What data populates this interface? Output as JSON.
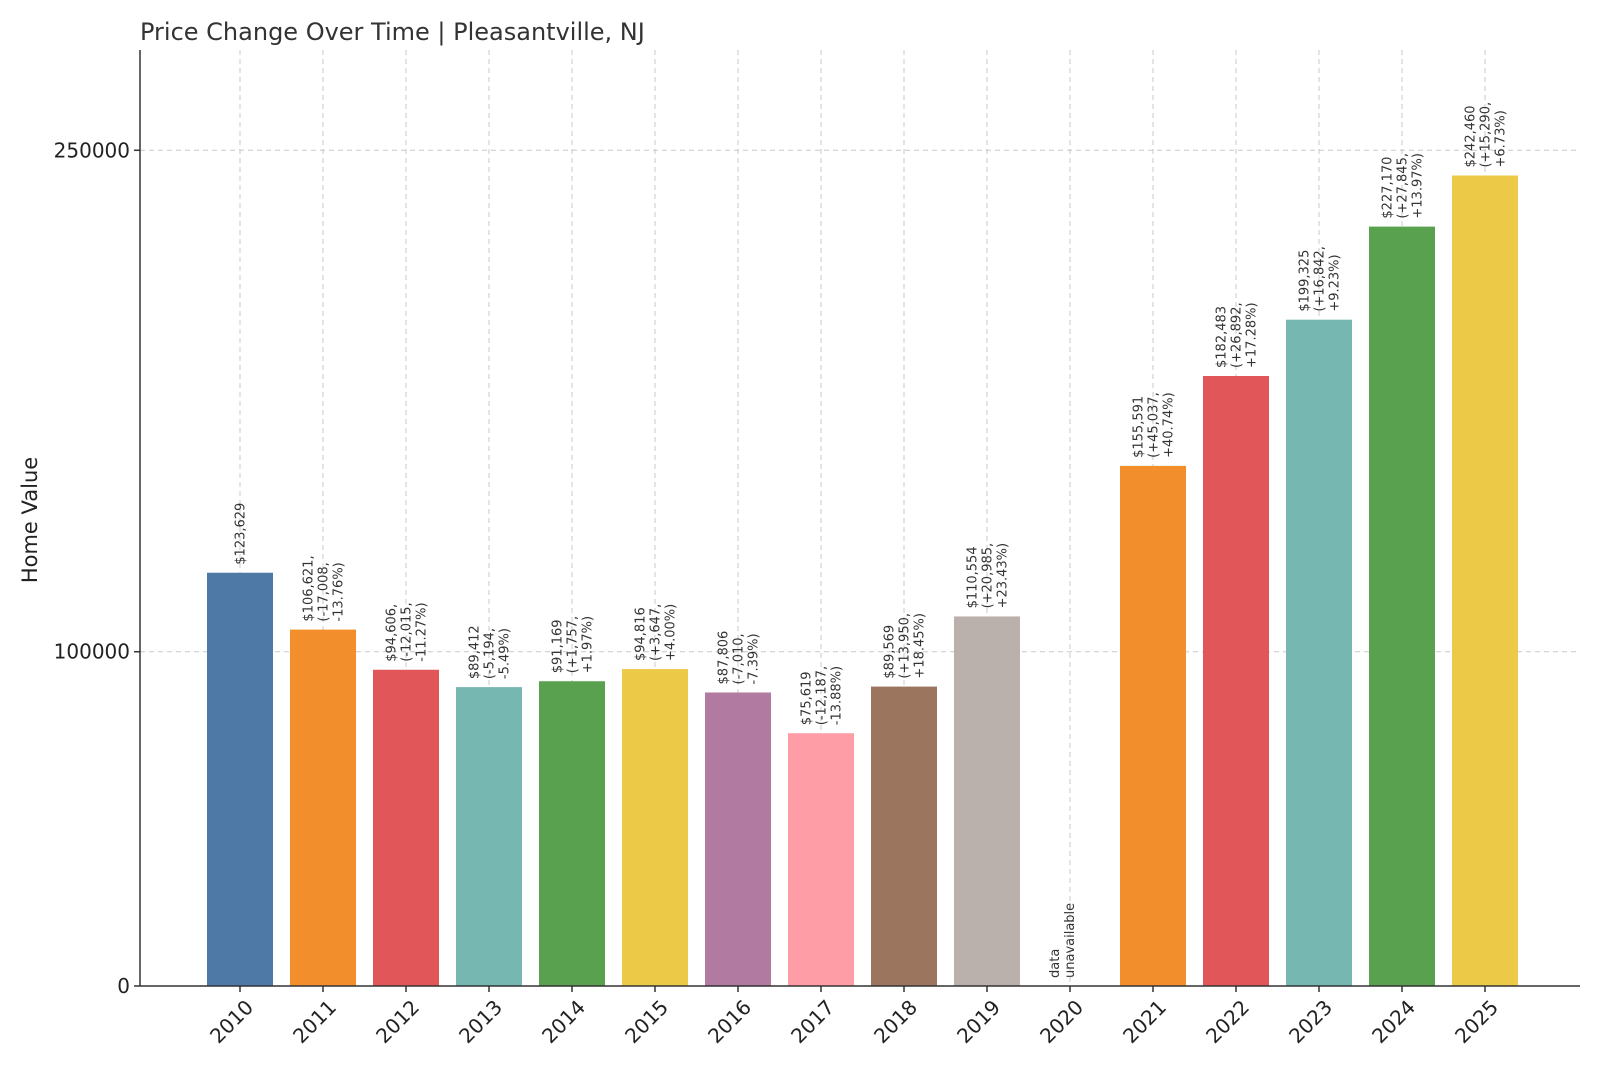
{
  "chart_data": {
    "type": "bar",
    "title": "Price Change Over Time | Pleasantville, NJ",
    "xlabel": "",
    "ylabel": "Home Value",
    "ylim": [
      0,
      280000
    ],
    "yticks": [
      0,
      100000,
      250000
    ],
    "ytick_labels": [
      "0",
      "100000",
      "250000"
    ],
    "grid": true,
    "categories": [
      "2010",
      "2011",
      "2012",
      "2013",
      "2014",
      "2015",
      "2016",
      "2017",
      "2018",
      "2019",
      "2020",
      "2021",
      "2022",
      "2023",
      "2024",
      "2025"
    ],
    "values": [
      123629,
      106621,
      94606,
      89412,
      91169,
      94816,
      87806,
      75619,
      89569,
      110554,
      null,
      155591,
      182483,
      199325,
      227170,
      242460
    ],
    "colors": [
      "#4e79a7",
      "#f28e2b",
      "#e15759",
      "#76b7b2",
      "#59a14f",
      "#edc948",
      "#b07aa1",
      "#ff9da7",
      "#9c755f",
      "#bab0ac",
      null,
      "#f28e2b",
      "#e15759",
      "#76b7b2",
      "#59a14f",
      "#edc948"
    ],
    "labels": [
      [
        "$123,629"
      ],
      [
        "$106,621,",
        "(-17,008,",
        "-13.76%)"
      ],
      [
        "$94,606,",
        "(-12,015,",
        "-11.27%)"
      ],
      [
        "$89,412",
        "(-5,194,",
        "-5.49%)"
      ],
      [
        "$91,169",
        "(+1,757,",
        "+1.97%)"
      ],
      [
        "$94,816",
        "(+3,647,",
        "+4.00%)"
      ],
      [
        "$87,806",
        "(-7,010,",
        "-7.39%)"
      ],
      [
        "$75,619",
        "(-12,187,",
        "-13.88%)"
      ],
      [
        "$89,569",
        "(+13,950,",
        "+18.45%)"
      ],
      [
        "$110,554",
        "(+20,985,",
        "+23.43%)"
      ],
      [
        "data",
        "unavailable"
      ],
      [
        "$155,591",
        "(+45,037,",
        "+40.74%)"
      ],
      [
        "$182,483",
        "(+26,892,",
        "+17.28%)"
      ],
      [
        "$199,325",
        "(+16,842,",
        "+9.23%)"
      ],
      [
        "$227,170",
        "(+27,845,",
        "+13.97%)"
      ],
      [
        "$242,460",
        "(+15,290,",
        "+6.73%)"
      ]
    ]
  }
}
